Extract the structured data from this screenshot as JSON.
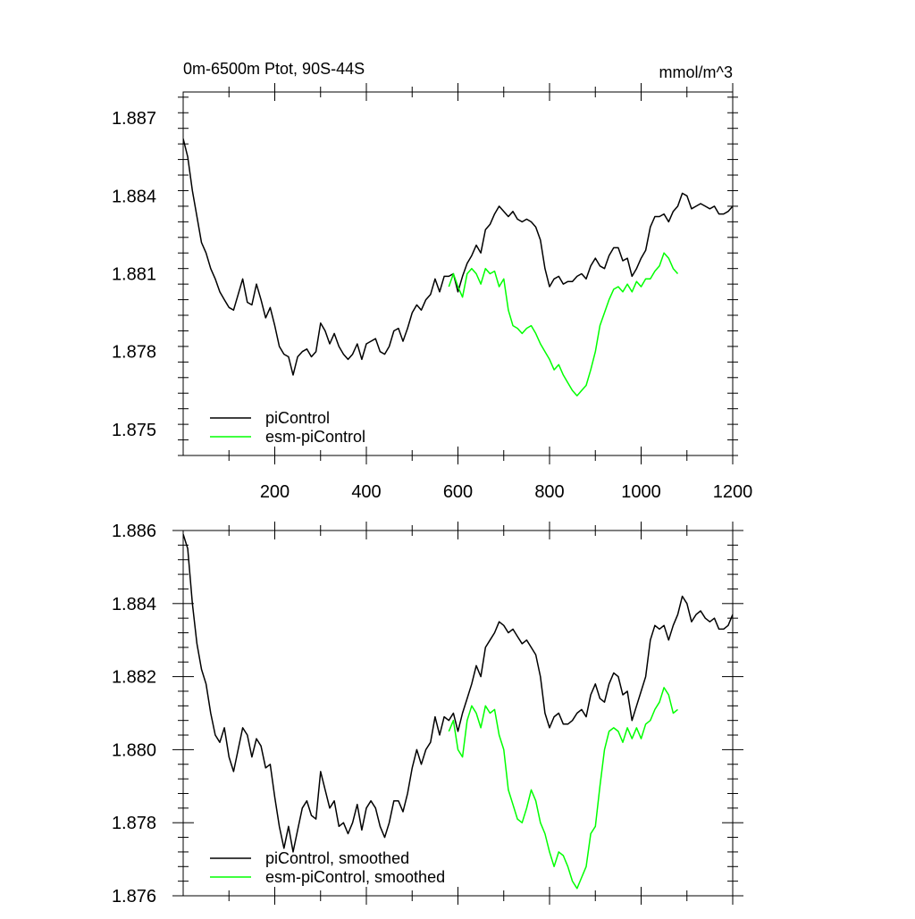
{
  "title_left": "0m-6500m Ptot, 90S-44S",
  "title_right": "mmol/m^3",
  "colors": {
    "piControl": "#000000",
    "esm": "#00ff00"
  },
  "chart_data": [
    {
      "type": "line",
      "xlim": [
        0,
        1200
      ],
      "ylim": [
        1.874,
        1.888
      ],
      "x_ticks": [
        200,
        400,
        600,
        800,
        1000,
        1200
      ],
      "x_tick_labels": [
        "200",
        "400",
        "600",
        "800",
        "1000",
        "1200"
      ],
      "y_ticks": [
        1.875,
        1.878,
        1.881,
        1.884,
        1.887
      ],
      "y_tick_labels": [
        "1.875",
        "1.878",
        "1.881",
        "1.884",
        "1.887"
      ],
      "legend_position": "bottom-left",
      "series": [
        {
          "name": "piControl",
          "color": "#000000",
          "x": [
            0,
            10,
            20,
            30,
            40,
            50,
            60,
            70,
            80,
            90,
            100,
            110,
            120,
            130,
            140,
            150,
            160,
            170,
            180,
            190,
            200,
            210,
            220,
            230,
            240,
            250,
            260,
            270,
            280,
            290,
            300,
            310,
            320,
            330,
            340,
            350,
            360,
            370,
            380,
            390,
            400,
            410,
            420,
            430,
            440,
            450,
            460,
            470,
            480,
            490,
            500,
            510,
            520,
            530,
            540,
            550,
            560,
            570,
            580,
            590,
            600,
            610,
            620,
            630,
            640,
            650,
            660,
            670,
            680,
            690,
            700,
            710,
            720,
            730,
            740,
            750,
            760,
            770,
            780,
            790,
            800,
            810,
            820,
            830,
            840,
            850,
            860,
            870,
            880,
            890,
            900,
            910,
            920,
            930,
            940,
            950,
            960,
            970,
            980,
            990,
            1000,
            1010,
            1020,
            1030,
            1040,
            1050,
            1060,
            1070,
            1080,
            1090,
            1100,
            1110,
            1120,
            1130,
            1140,
            1150,
            1160,
            1170,
            1180,
            1190,
            1200
          ],
          "values": [
            1.8862,
            1.8855,
            1.8842,
            1.8832,
            1.8822,
            1.8818,
            1.8812,
            1.8808,
            1.8803,
            1.88,
            1.8797,
            1.8796,
            1.8802,
            1.8808,
            1.8799,
            1.8798,
            1.8806,
            1.88,
            1.8793,
            1.8797,
            1.879,
            1.8782,
            1.8779,
            1.8778,
            1.8771,
            1.8778,
            1.878,
            1.8781,
            1.8778,
            1.878,
            1.8791,
            1.8788,
            1.8783,
            1.8787,
            1.8782,
            1.8779,
            1.8777,
            1.8779,
            1.8783,
            1.8777,
            1.8783,
            1.8784,
            1.8785,
            1.878,
            1.8779,
            1.8782,
            1.8788,
            1.8789,
            1.8784,
            1.8789,
            1.8795,
            1.8798,
            1.8796,
            1.88,
            1.8802,
            1.8808,
            1.8803,
            1.8809,
            1.8809,
            1.881,
            1.8803,
            1.8809,
            1.8814,
            1.8817,
            1.8821,
            1.8818,
            1.8827,
            1.8829,
            1.8833,
            1.8836,
            1.8834,
            1.8832,
            1.8834,
            1.8831,
            1.883,
            1.8831,
            1.883,
            1.8828,
            1.8823,
            1.8812,
            1.8805,
            1.8808,
            1.8809,
            1.8806,
            1.8807,
            1.8807,
            1.8809,
            1.881,
            1.8808,
            1.8813,
            1.8816,
            1.8813,
            1.8812,
            1.8817,
            1.882,
            1.882,
            1.8815,
            1.8816,
            1.8809,
            1.8812,
            1.8816,
            1.8819,
            1.8828,
            1.8832,
            1.8832,
            1.8833,
            1.883,
            1.8834,
            1.8836,
            1.8841,
            1.884,
            1.8835,
            1.8836,
            1.8837,
            1.8836,
            1.8835,
            1.8836,
            1.8833,
            1.8833,
            1.8834,
            1.8836
          ]
        },
        {
          "name": "esm-piControl",
          "color": "#00ff00",
          "x": [
            580,
            590,
            600,
            610,
            620,
            630,
            640,
            650,
            660,
            670,
            680,
            690,
            700,
            710,
            720,
            730,
            740,
            750,
            760,
            770,
            780,
            790,
            800,
            810,
            820,
            830,
            840,
            850,
            860,
            870,
            880,
            890,
            900,
            910,
            920,
            930,
            940,
            950,
            960,
            970,
            980,
            990,
            1000,
            1010,
            1020,
            1030,
            1040,
            1050,
            1060,
            1070,
            1080
          ],
          "values": [
            1.8805,
            1.881,
            1.8805,
            1.8801,
            1.881,
            1.8812,
            1.881,
            1.8806,
            1.8812,
            1.881,
            1.8811,
            1.8805,
            1.8808,
            1.8796,
            1.879,
            1.8789,
            1.8787,
            1.8789,
            1.879,
            1.8787,
            1.8783,
            1.878,
            1.8777,
            1.8773,
            1.8775,
            1.8771,
            1.8768,
            1.8765,
            1.8763,
            1.8765,
            1.8767,
            1.8773,
            1.878,
            1.879,
            1.8795,
            1.88,
            1.8804,
            1.8805,
            1.8803,
            1.8806,
            1.8803,
            1.8807,
            1.8805,
            1.8808,
            1.8808,
            1.8811,
            1.8813,
            1.8818,
            1.8816,
            1.8812,
            1.881
          ]
        }
      ]
    },
    {
      "type": "line",
      "xlim": [
        0,
        1200
      ],
      "ylim": [
        1.876,
        1.886
      ],
      "x_ticks": [
        200,
        400,
        600,
        800,
        1000,
        1200
      ],
      "y_ticks": [
        1.876,
        1.878,
        1.88,
        1.882,
        1.884,
        1.886
      ],
      "y_tick_labels": [
        "1.876",
        "1.878",
        "1.880",
        "1.882",
        "1.884",
        "1.886"
      ],
      "legend_position": "bottom-left",
      "series": [
        {
          "name": "piControl, smoothed",
          "color": "#000000",
          "x": [
            0,
            10,
            20,
            30,
            40,
            50,
            60,
            70,
            80,
            90,
            100,
            110,
            120,
            130,
            140,
            150,
            160,
            170,
            180,
            190,
            200,
            210,
            220,
            230,
            240,
            250,
            260,
            270,
            280,
            290,
            300,
            310,
            320,
            330,
            340,
            350,
            360,
            370,
            380,
            390,
            400,
            410,
            420,
            430,
            440,
            450,
            460,
            470,
            480,
            490,
            500,
            510,
            520,
            530,
            540,
            550,
            560,
            570,
            580,
            590,
            600,
            610,
            620,
            630,
            640,
            650,
            660,
            670,
            680,
            690,
            700,
            710,
            720,
            730,
            740,
            750,
            760,
            770,
            780,
            790,
            800,
            810,
            820,
            830,
            840,
            850,
            860,
            870,
            880,
            890,
            900,
            910,
            920,
            930,
            940,
            950,
            960,
            970,
            980,
            990,
            1000,
            1010,
            1020,
            1030,
            1040,
            1050,
            1060,
            1070,
            1080,
            1090,
            1100,
            1110,
            1120,
            1130,
            1140,
            1150,
            1160,
            1170,
            1180,
            1190,
            1200
          ],
          "values": [
            1.8859,
            1.8855,
            1.884,
            1.8829,
            1.8822,
            1.8818,
            1.881,
            1.8804,
            1.8802,
            1.8806,
            1.8798,
            1.8794,
            1.88,
            1.8806,
            1.8804,
            1.8798,
            1.8803,
            1.8801,
            1.8795,
            1.8796,
            1.8787,
            1.8779,
            1.8773,
            1.8779,
            1.8772,
            1.8778,
            1.8784,
            1.8786,
            1.8782,
            1.8781,
            1.8794,
            1.8789,
            1.8784,
            1.8786,
            1.8779,
            1.878,
            1.8777,
            1.878,
            1.8785,
            1.8778,
            1.8784,
            1.8786,
            1.8784,
            1.8779,
            1.8776,
            1.878,
            1.8786,
            1.8786,
            1.8783,
            1.8788,
            1.8795,
            1.88,
            1.8796,
            1.88,
            1.8802,
            1.8809,
            1.8804,
            1.8809,
            1.8808,
            1.881,
            1.8805,
            1.881,
            1.8814,
            1.8818,
            1.8823,
            1.882,
            1.8828,
            1.883,
            1.8832,
            1.8835,
            1.8834,
            1.8832,
            1.8833,
            1.8831,
            1.8829,
            1.883,
            1.8828,
            1.8826,
            1.882,
            1.881,
            1.8806,
            1.8809,
            1.881,
            1.8807,
            1.8807,
            1.8808,
            1.881,
            1.8811,
            1.8809,
            1.8815,
            1.8818,
            1.8814,
            1.8813,
            1.8818,
            1.8821,
            1.882,
            1.8815,
            1.8816,
            1.8808,
            1.8812,
            1.8816,
            1.882,
            1.883,
            1.8834,
            1.8833,
            1.8834,
            1.883,
            1.8834,
            1.8837,
            1.8842,
            1.884,
            1.8835,
            1.8837,
            1.8838,
            1.8836,
            1.8835,
            1.8836,
            1.8833,
            1.8833,
            1.8834,
            1.8837
          ]
        },
        {
          "name": "esm-piControl, smoothed",
          "color": "#00ff00",
          "x": [
            580,
            590,
            600,
            610,
            620,
            630,
            640,
            650,
            660,
            670,
            680,
            690,
            700,
            710,
            720,
            730,
            740,
            750,
            760,
            770,
            780,
            790,
            800,
            810,
            820,
            830,
            840,
            850,
            860,
            870,
            880,
            890,
            900,
            910,
            920,
            930,
            940,
            950,
            960,
            970,
            980,
            990,
            1000,
            1010,
            1020,
            1030,
            1040,
            1050,
            1060,
            1070,
            1080
          ],
          "values": [
            1.8805,
            1.8808,
            1.88,
            1.8798,
            1.8808,
            1.8812,
            1.881,
            1.8806,
            1.8812,
            1.881,
            1.8811,
            1.8804,
            1.88,
            1.8789,
            1.8785,
            1.8781,
            1.878,
            1.8784,
            1.8789,
            1.8786,
            1.878,
            1.8777,
            1.8772,
            1.8768,
            1.8772,
            1.8771,
            1.8768,
            1.8764,
            1.8762,
            1.8765,
            1.8768,
            1.8777,
            1.8779,
            1.879,
            1.88,
            1.8805,
            1.8806,
            1.8805,
            1.8802,
            1.8806,
            1.8803,
            1.8806,
            1.8803,
            1.8807,
            1.8808,
            1.8811,
            1.8813,
            1.8817,
            1.8815,
            1.881,
            1.8811
          ]
        }
      ]
    }
  ]
}
